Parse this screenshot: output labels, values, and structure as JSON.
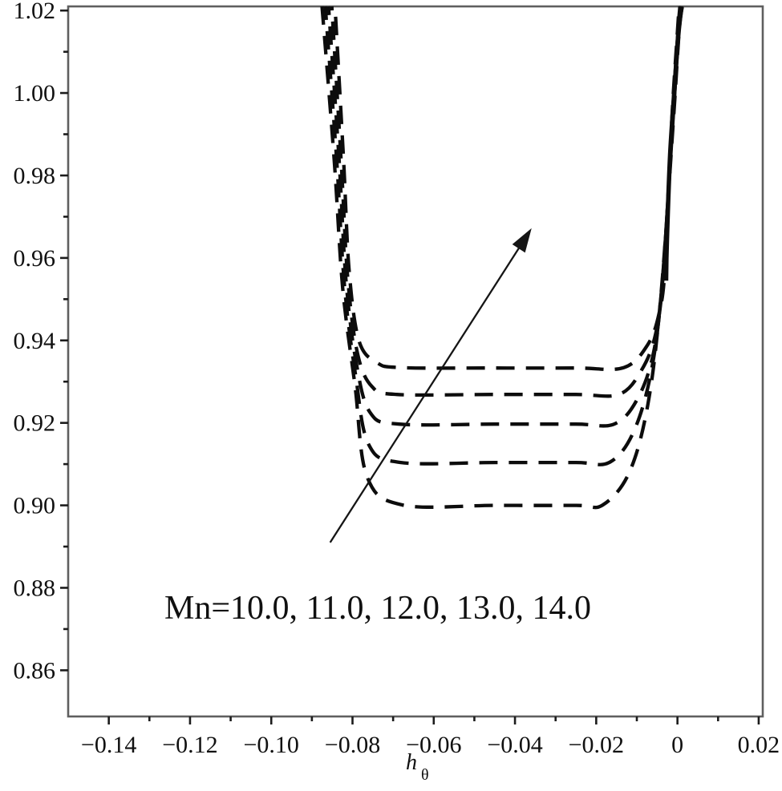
{
  "colors": {
    "background": "#ffffff",
    "curve": "#0c0c0c",
    "axis_frame": "#5f5f5f",
    "tick": "#1c1c1c",
    "text": "#101010",
    "arrow": "#151515"
  },
  "chart_data": {
    "type": "line",
    "title": "",
    "xlabel_base": "h",
    "xlabel_sub": "θ",
    "ylabel": "",
    "annotation": "Mn=10.0, 11.0, 12.0, 13.0, 14.0",
    "annotation_meaning": "Mn increases in direction of arrow",
    "grid": false,
    "legend_position": "none",
    "xlim": [
      -0.15,
      0.021
    ],
    "ylim": [
      0.8488,
      1.021
    ],
    "x_major_ticks": [
      -0.14,
      -0.12,
      -0.1,
      -0.08,
      -0.06,
      -0.04,
      -0.02,
      0,
      0.02
    ],
    "x_major_labels": [
      "−0.14",
      "−0.12",
      "−0.10",
      "−0.08",
      "−0.06",
      "−0.04",
      "−0.02",
      "0",
      "0.02"
    ],
    "x_minor_ticks": [
      -0.13,
      -0.11,
      -0.09,
      -0.07,
      -0.05,
      -0.03,
      -0.01,
      0.01
    ],
    "y_major_ticks": [
      0.86,
      0.88,
      0.9,
      0.92,
      0.94,
      0.96,
      0.98,
      1.0,
      1.02
    ],
    "y_major_labels": [
      "0.86",
      "0.88",
      "0.90",
      "0.92",
      "0.94",
      "0.96",
      "0.98",
      "1.00",
      "1.02"
    ],
    "y_minor_ticks": [
      0.87,
      0.89,
      0.91,
      0.93,
      0.95,
      0.97,
      0.99,
      1.01
    ],
    "series": [
      {
        "name": "Mn=10.0",
        "Mn": 10.0,
        "flat_value": 0.9,
        "style": "dashed",
        "points": [
          [
            -0.0875,
            1.021
          ],
          [
            -0.0845,
            0.9837
          ],
          [
            -0.0824,
            0.9526
          ],
          [
            -0.0794,
            0.9292
          ],
          [
            -0.0764,
            0.9069
          ],
          [
            -0.0677,
            0.9001
          ],
          [
            -0.045,
            0.9
          ],
          [
            -0.025,
            0.9
          ],
          [
            -0.0184,
            0.9001
          ],
          [
            -0.0119,
            0.9079
          ],
          [
            -0.0073,
            0.9244
          ],
          [
            -0.0041,
            0.9506
          ],
          [
            -0.001,
            0.9934
          ],
          [
            0.0004,
            1.0148
          ],
          [
            0.0012,
            1.021
          ]
        ]
      },
      {
        "name": "Mn=11.0",
        "Mn": 11.0,
        "flat_value": 0.91,
        "style": "dashed",
        "points": [
          [
            -0.0867,
            1.021
          ],
          [
            -0.0839,
            0.9837
          ],
          [
            -0.082,
            0.9535
          ],
          [
            -0.0792,
            0.9312
          ],
          [
            -0.076,
            0.9147
          ],
          [
            -0.0681,
            0.9104
          ],
          [
            -0.045,
            0.9104
          ],
          [
            -0.025,
            0.9104
          ],
          [
            -0.0168,
            0.9104
          ],
          [
            -0.0109,
            0.9176
          ],
          [
            -0.0065,
            0.9322
          ],
          [
            -0.0038,
            0.9535
          ],
          [
            -0.0011,
            0.9934
          ],
          [
            0.0003,
            1.0148
          ],
          [
            0.001,
            1.021
          ]
        ]
      },
      {
        "name": "Mn=12.0",
        "Mn": 12.0,
        "flat_value": 0.92,
        "style": "dashed",
        "points": [
          [
            -0.0859,
            1.021
          ],
          [
            -0.0833,
            0.9837
          ],
          [
            -0.0816,
            0.9545
          ],
          [
            -0.079,
            0.9341
          ],
          [
            -0.0756,
            0.9224
          ],
          [
            -0.0685,
            0.9197
          ],
          [
            -0.045,
            0.9197
          ],
          [
            -0.025,
            0.9197
          ],
          [
            -0.0156,
            0.9197
          ],
          [
            -0.0099,
            0.9257
          ],
          [
            -0.0059,
            0.937
          ],
          [
            -0.0036,
            0.9555
          ],
          [
            -0.0012,
            0.9934
          ],
          [
            0.0002,
            1.0148
          ],
          [
            0.0008,
            1.021
          ]
        ]
      },
      {
        "name": "Mn=13.0",
        "Mn": 13.0,
        "flat_value": 0.927,
        "style": "dashed",
        "points": [
          [
            -0.0851,
            1.021
          ],
          [
            -0.0828,
            0.9837
          ],
          [
            -0.0812,
            0.9555
          ],
          [
            -0.0788,
            0.937
          ],
          [
            -0.0752,
            0.9288
          ],
          [
            -0.0691,
            0.9269
          ],
          [
            -0.045,
            0.9269
          ],
          [
            -0.025,
            0.9269
          ],
          [
            -0.0144,
            0.9269
          ],
          [
            -0.0089,
            0.9327
          ],
          [
            -0.0053,
            0.9419
          ],
          [
            -0.0034,
            0.9574
          ],
          [
            -0.0013,
            0.9934
          ],
          [
            0.0001,
            1.0148
          ],
          [
            0.0006,
            1.021
          ]
        ]
      },
      {
        "name": "Mn=14.0",
        "Mn": 14.0,
        "flat_value": 0.933,
        "style": "dashed",
        "points": [
          [
            -0.0843,
            1.021
          ],
          [
            -0.0822,
            0.9837
          ],
          [
            -0.0808,
            0.9565
          ],
          [
            -0.0784,
            0.9399
          ],
          [
            -0.0741,
            0.9347
          ],
          [
            -0.0681,
            0.9334
          ],
          [
            -0.045,
            0.9333
          ],
          [
            -0.025,
            0.9333
          ],
          [
            -0.0132,
            0.9334
          ],
          [
            -0.0073,
            0.939
          ],
          [
            -0.0045,
            0.9467
          ],
          [
            -0.003,
            0.9584
          ],
          [
            -0.0014,
            0.9934
          ],
          [
            0.0,
            1.0148
          ],
          [
            0.0004,
            1.021
          ]
        ]
      },
      {
        "name": "solid-asymptote",
        "style": "solid",
        "points": [
          [
            -0.0028,
            0.9545
          ],
          [
            -0.0026,
            0.9642
          ],
          [
            -0.0018,
            0.985
          ],
          [
            -0.0008,
            1.0
          ],
          [
            0.0002,
            1.014
          ],
          [
            0.001,
            1.021
          ]
        ]
      }
    ],
    "arrow": {
      "from": [
        -0.0855,
        0.891
      ],
      "to": [
        -0.0359,
        0.9672
      ]
    }
  }
}
